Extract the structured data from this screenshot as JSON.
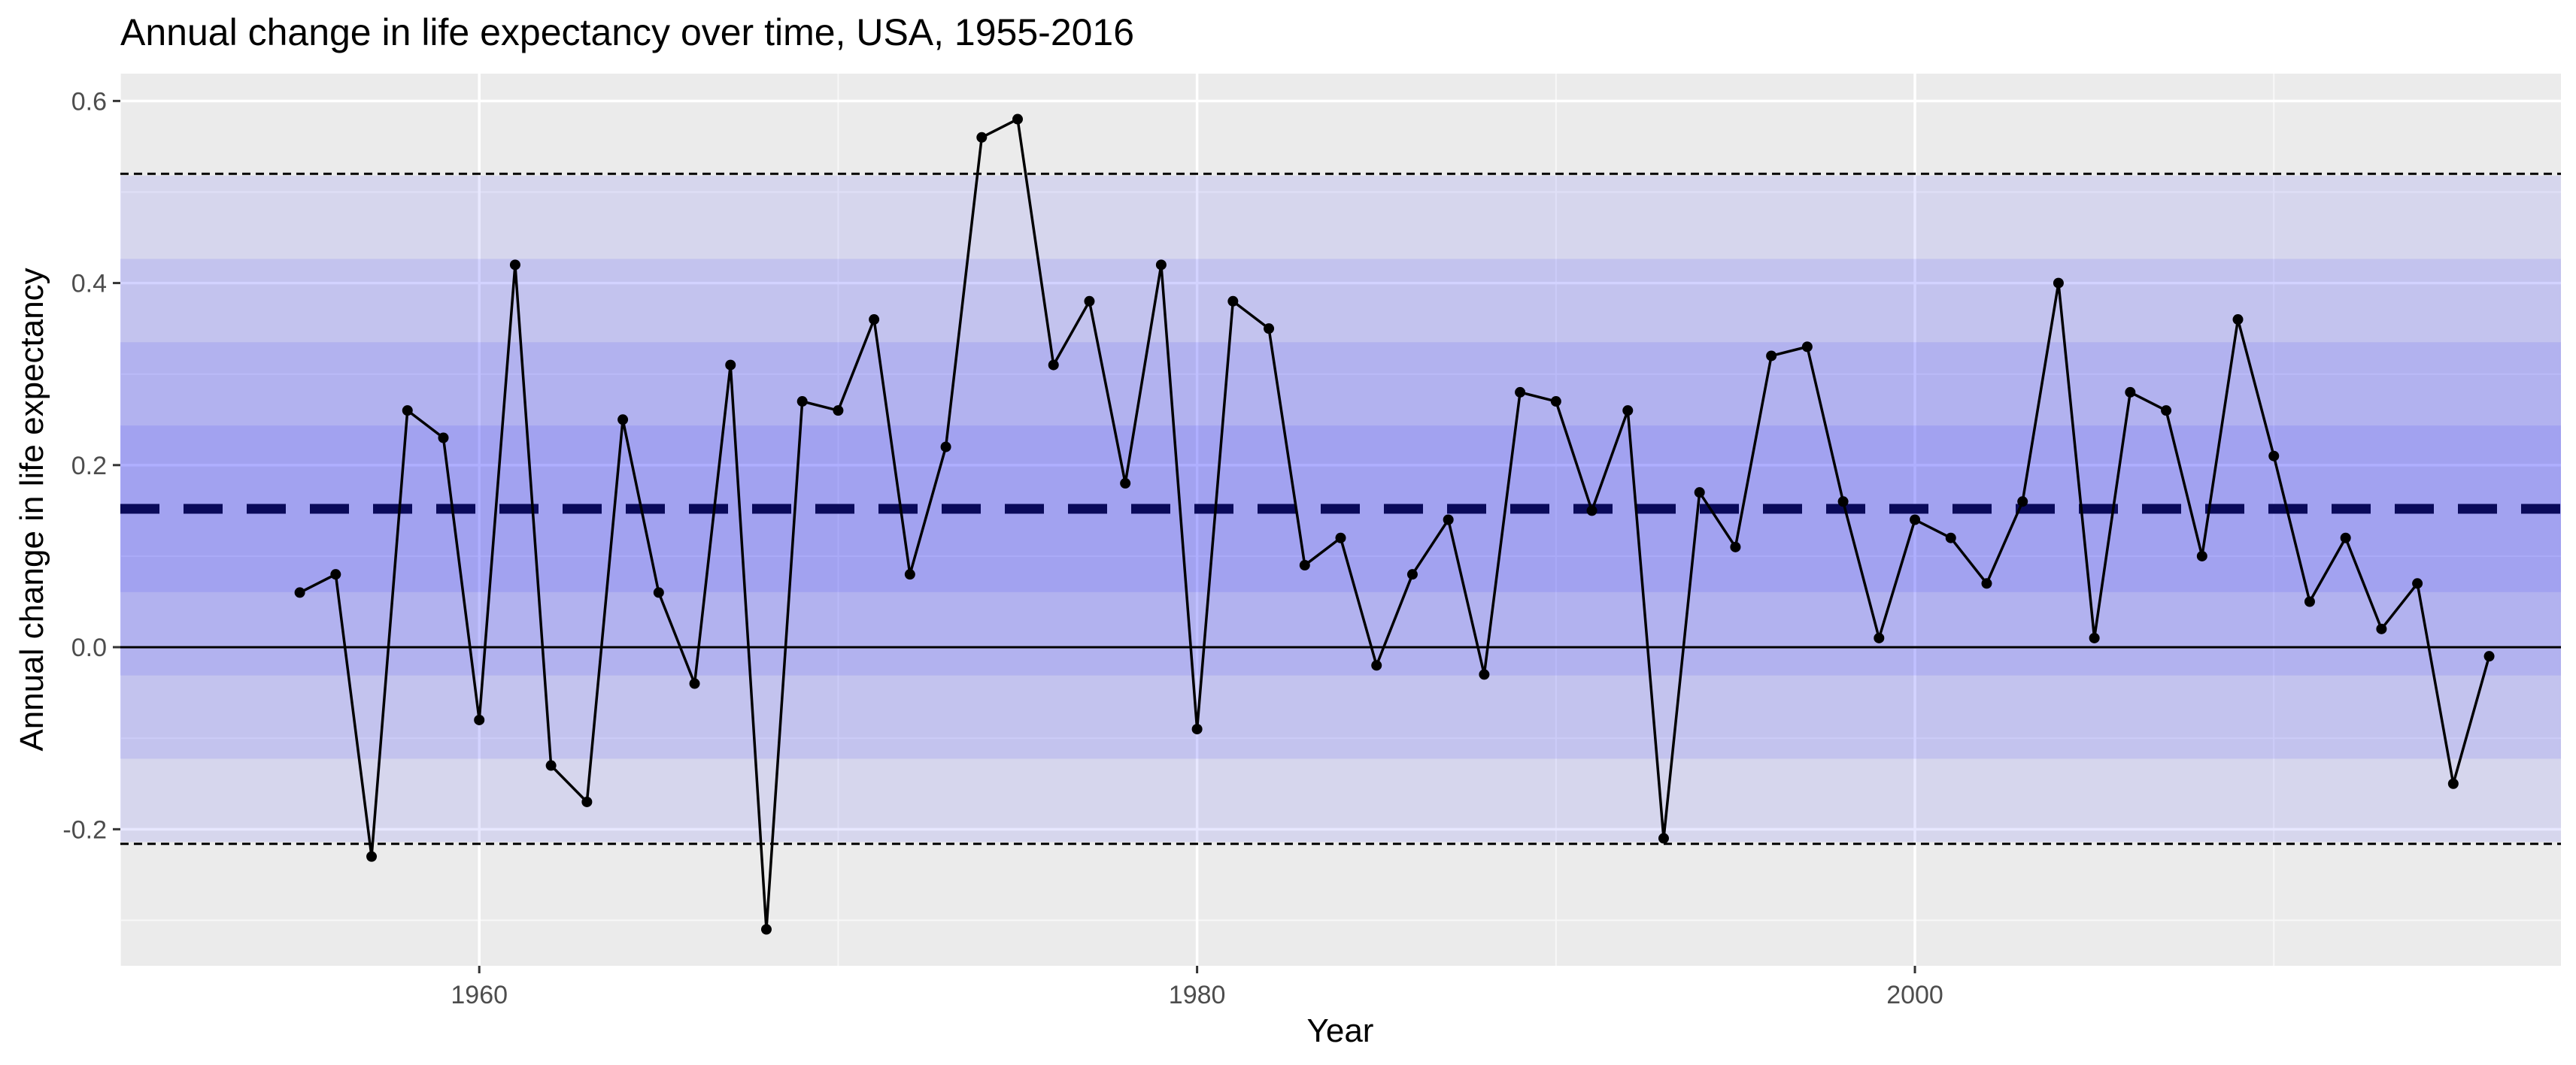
{
  "chart_data": {
    "type": "line",
    "title": "Annual change in life expectancy over time, USA, 1955-2016",
    "xlabel": "Year",
    "ylabel": "Annual change in life expectancy",
    "xlim": [
      1950,
      2018
    ],
    "ylim": [
      -0.35,
      0.63
    ],
    "x_ticks": [
      1960,
      1980,
      2000
    ],
    "x_tick_labels": [
      "1960",
      "1980",
      "2000"
    ],
    "y_ticks": [
      -0.2,
      0.0,
      0.2,
      0.4,
      0.6
    ],
    "y_tick_labels": [
      "-0.2",
      "0.0",
      "0.2",
      "0.4",
      "0.6"
    ],
    "grid": true,
    "legend": "none",
    "series": [
      {
        "x": [
          1955,
          1956,
          1957,
          1958,
          1959,
          1960,
          1961,
          1962,
          1963,
          1964,
          1965,
          1966,
          1967,
          1968,
          1969,
          1970,
          1971,
          1972,
          1973,
          1974,
          1975,
          1976,
          1977,
          1978,
          1979,
          1980,
          1981,
          1982,
          1983,
          1984,
          1985,
          1986,
          1987,
          1988,
          1989,
          1990,
          1991,
          1992,
          1993,
          1994,
          1995,
          1996,
          1997,
          1998,
          1999,
          2000,
          2001,
          2002,
          2003,
          2004,
          2005,
          2006,
          2007,
          2008,
          2009,
          2010,
          2011,
          2012,
          2013,
          2014,
          2015,
          2016
        ],
        "values": [
          0.06,
          0.08,
          -0.23,
          0.26,
          0.23,
          -0.08,
          0.42,
          -0.13,
          -0.17,
          0.25,
          0.06,
          -0.04,
          0.31,
          -0.31,
          0.27,
          0.26,
          0.36,
          0.08,
          0.22,
          0.56,
          0.58,
          0.31,
          0.38,
          0.18,
          0.42,
          -0.09,
          0.38,
          0.35,
          0.09,
          0.12,
          -0.02,
          0.08,
          0.14,
          -0.03,
          0.28,
          0.27,
          0.15,
          0.26,
          -0.21,
          0.17,
          0.11,
          0.32,
          0.33,
          0.16,
          0.01,
          0.14,
          0.12,
          0.07,
          0.16,
          0.4,
          0.01,
          0.28,
          0.26,
          0.1,
          0.36,
          0.21,
          0.05,
          0.12,
          0.02,
          0.07,
          -0.15,
          -0.01
        ]
      }
    ],
    "reference_lines": {
      "zero": 0.0,
      "mean": 0.152,
      "upper_limit": 0.52,
      "lower_limit": -0.216
    },
    "bands": {
      "center": 0.152,
      "sigma": 0.0915,
      "color": "#2020ff",
      "layer_opacity": 0.1
    },
    "colors": {
      "panel_bg": "#ebebeb",
      "grid_major": "#ffffff",
      "line": "#000000",
      "mean_line": "#0a0a5a"
    }
  }
}
